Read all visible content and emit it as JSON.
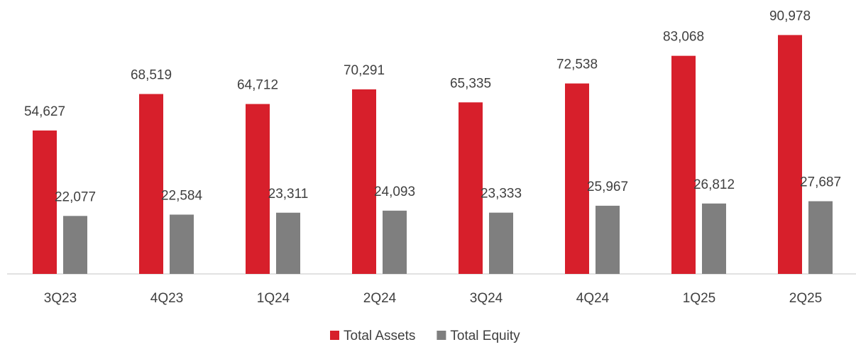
{
  "chart_data": {
    "type": "bar",
    "categories": [
      "3Q23",
      "4Q23",
      "1Q24",
      "2Q24",
      "3Q24",
      "4Q24",
      "1Q25",
      "2Q25"
    ],
    "series": [
      {
        "name": "Total Assets",
        "color": "#d71f2b",
        "values": [
          54627,
          68519,
          64712,
          70291,
          65335,
          72538,
          83068,
          90978
        ],
        "value_labels": [
          "54,627",
          "68,519",
          "64,712",
          "70,291",
          "65,335",
          "72,538",
          "83,068",
          "90,978"
        ]
      },
      {
        "name": "Total Equity",
        "color": "#7f7f7f",
        "values": [
          22077,
          22584,
          23311,
          24093,
          23333,
          25967,
          26812,
          27687
        ],
        "value_labels": [
          "22,077",
          "22,584",
          "23,311",
          "24,093",
          "23,333",
          "25,967",
          "26,812",
          "27,687"
        ]
      }
    ],
    "ylim": [
      0,
      100000
    ],
    "legend": "bottom"
  }
}
